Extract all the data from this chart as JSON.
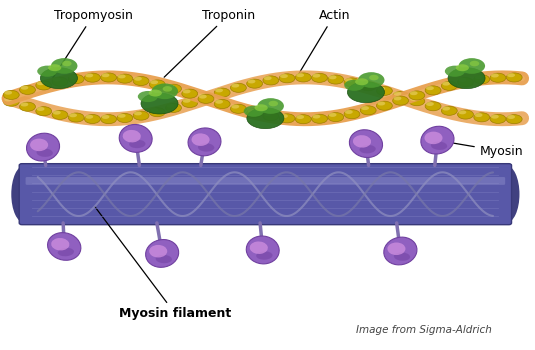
{
  "bg_color": "#ffffff",
  "fig_width": 5.35,
  "fig_height": 3.5,
  "dpi": 100,
  "actin_bead_color": "#C8A800",
  "actin_bead_edge": "#A08000",
  "actin_bead_highlight": "#E8D060",
  "tropomyosin_color": "#E8A050",
  "troponin_dark": "#2A7020",
  "troponin_mid": "#4A9A30",
  "troponin_light": "#90D040",
  "myosin_head_dark": "#7040A0",
  "myosin_head_mid": "#9060C0",
  "myosin_head_light": "#D090E0",
  "myosin_neck_color": "#8070B0",
  "myosin_fil_main": "#5858A8",
  "myosin_fil_dark": "#3838788",
  "myosin_fil_stripe": "#7070B8",
  "myosin_fil_coil": "#8888C0",
  "labels": {
    "tropomyosin": "Tropomyosin",
    "troponin": "Troponin",
    "actin": "Actin",
    "myosin": "Myosin",
    "myosin_filament": "Myosin filament",
    "credit": "Image from Sigma-Aldrich"
  }
}
